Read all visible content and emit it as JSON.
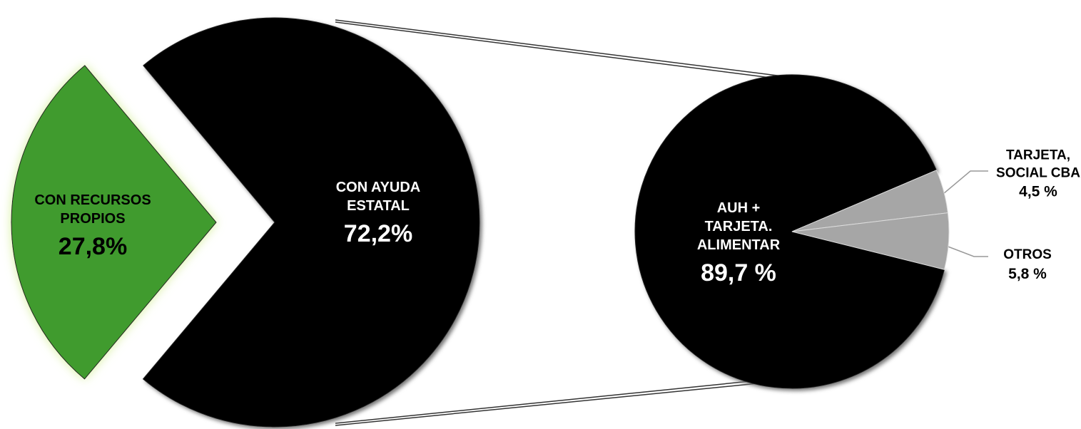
{
  "chart_data": [
    {
      "type": "pie",
      "categories": [
        "CON RECURSOS PROPIOS",
        "CON  AYUDA ESTATAL"
      ],
      "values": [
        27.8,
        72.2
      ],
      "value_labels": [
        "27,8%",
        "72,2%"
      ],
      "colors": [
        "#3f9b2f",
        "#000000"
      ]
    },
    {
      "type": "pie",
      "categories": [
        "AUH + TARJETA. ALIMENTAR",
        "TARJETA, SOCIAL CBA",
        "OTROS"
      ],
      "values": [
        89.7,
        4.5,
        5.8
      ],
      "value_labels": [
        "89,7 %",
        "4,5 %",
        "5,8 %"
      ],
      "colors": [
        "#000000",
        "#a6a6a6",
        "#a6a6a6"
      ]
    }
  ]
}
